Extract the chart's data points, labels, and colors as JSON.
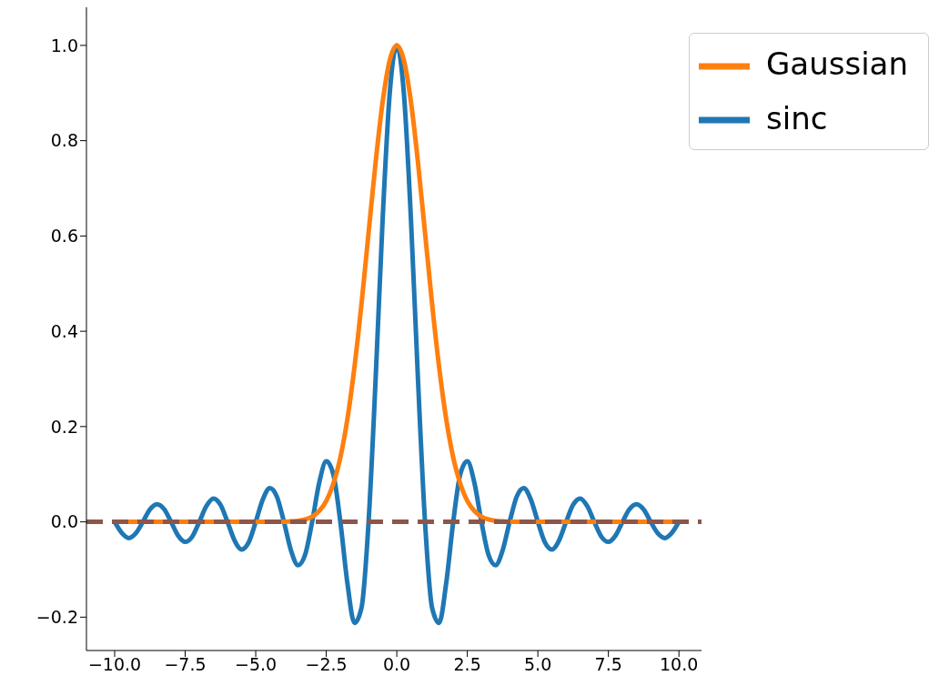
{
  "chart_data": {
    "type": "line",
    "x": [
      -10,
      -9.75,
      -9.5,
      -9.25,
      -9,
      -8.75,
      -8.5,
      -8.25,
      -8,
      -7.75,
      -7.5,
      -7.25,
      -7,
      -6.75,
      -6.5,
      -6.25,
      -6,
      -5.75,
      -5.5,
      -5.25,
      -5,
      -4.75,
      -4.5,
      -4.25,
      -4,
      -3.75,
      -3.5,
      -3.25,
      -3,
      -2.75,
      -2.5,
      -2.25,
      -2,
      -1.75,
      -1.5,
      -1.25,
      -1,
      -0.75,
      -0.5,
      -0.25,
      0,
      0.25,
      0.5,
      0.75,
      1,
      1.25,
      1.5,
      1.75,
      2,
      2.25,
      2.5,
      2.75,
      3,
      3.25,
      3.5,
      3.75,
      4,
      4.25,
      4.5,
      4.75,
      5,
      5.25,
      5.5,
      5.75,
      6,
      6.25,
      6.5,
      6.75,
      7,
      7.25,
      7.5,
      7.75,
      8,
      8.25,
      8.5,
      8.75,
      9,
      9.25,
      9.5,
      9.75,
      10
    ],
    "series": [
      {
        "name": "sinc",
        "color": "#1f77b4",
        "values": [
          0,
          -0.023,
          -0.034,
          -0.024,
          0,
          0.026,
          0.037,
          0.027,
          0,
          -0.029,
          -0.042,
          -0.031,
          0,
          0.033,
          0.049,
          0.036,
          0,
          -0.039,
          -0.058,
          -0.043,
          0,
          0.047,
          0.071,
          0.053,
          0,
          -0.06,
          -0.091,
          -0.069,
          0,
          0.082,
          0.127,
          0.1,
          0,
          -0.129,
          -0.212,
          -0.18,
          0,
          0.3,
          0.637,
          0.9,
          1,
          0.9,
          0.637,
          0.3,
          0,
          -0.18,
          -0.212,
          -0.129,
          0,
          0.1,
          0.127,
          0.082,
          0,
          -0.069,
          -0.091,
          -0.06,
          0,
          0.053,
          0.071,
          0.047,
          0,
          -0.043,
          -0.058,
          -0.039,
          0,
          0.036,
          0.049,
          0.033,
          0,
          -0.031,
          -0.042,
          -0.029,
          0,
          0.027,
          0.037,
          0.026,
          0,
          -0.024,
          -0.034,
          -0.023,
          0
        ]
      },
      {
        "name": "Gaussian",
        "color": "#ff7f0e",
        "values": [
          0,
          0,
          0,
          0,
          0,
          0,
          0,
          0,
          0,
          0,
          0,
          0,
          0,
          0,
          0,
          0,
          0,
          0,
          0,
          0,
          0,
          0,
          0,
          0,
          0,
          0.001,
          0.002,
          0.005,
          0.011,
          0.023,
          0.044,
          0.08,
          0.135,
          0.216,
          0.325,
          0.458,
          0.607,
          0.755,
          0.882,
          0.969,
          1,
          0.969,
          0.882,
          0.755,
          0.607,
          0.458,
          0.325,
          0.216,
          0.135,
          0.08,
          0.044,
          0.023,
          0.011,
          0.005,
          0.002,
          0.001,
          0,
          0,
          0,
          0,
          0,
          0,
          0,
          0,
          0,
          0,
          0,
          0,
          0,
          0,
          0,
          0,
          0,
          0,
          0,
          0,
          0,
          0,
          0,
          0,
          0
        ]
      }
    ],
    "ref_lines": [
      {
        "axis": "y",
        "value": 0,
        "color": "#8c564b",
        "line_style": "dashed"
      }
    ],
    "xlim": [
      -11,
      10.8
    ],
    "ylim": [
      -0.27,
      1.08
    ],
    "xticks": [
      {
        "value": -10,
        "label": "−10.0"
      },
      {
        "value": -7.5,
        "label": "−7.5"
      },
      {
        "value": -5,
        "label": "−5.0"
      },
      {
        "value": -2.5,
        "label": "−2.5"
      },
      {
        "value": 0,
        "label": "0.0"
      },
      {
        "value": 2.5,
        "label": "2.5"
      },
      {
        "value": 5,
        "label": "5.0"
      },
      {
        "value": 7.5,
        "label": "7.5"
      },
      {
        "value": 10,
        "label": "10.0"
      }
    ],
    "yticks": [
      {
        "value": -0.2,
        "label": "−0.2"
      },
      {
        "value": 0,
        "label": "0.0"
      },
      {
        "value": 0.2,
        "label": "0.2"
      },
      {
        "value": 0.4,
        "label": "0.4"
      },
      {
        "value": 0.6,
        "label": "0.6"
      },
      {
        "value": 0.8,
        "label": "0.8"
      },
      {
        "value": 1,
        "label": "1.0"
      }
    ],
    "legend": "top right",
    "marker": "none",
    "line_style": "solid"
  }
}
